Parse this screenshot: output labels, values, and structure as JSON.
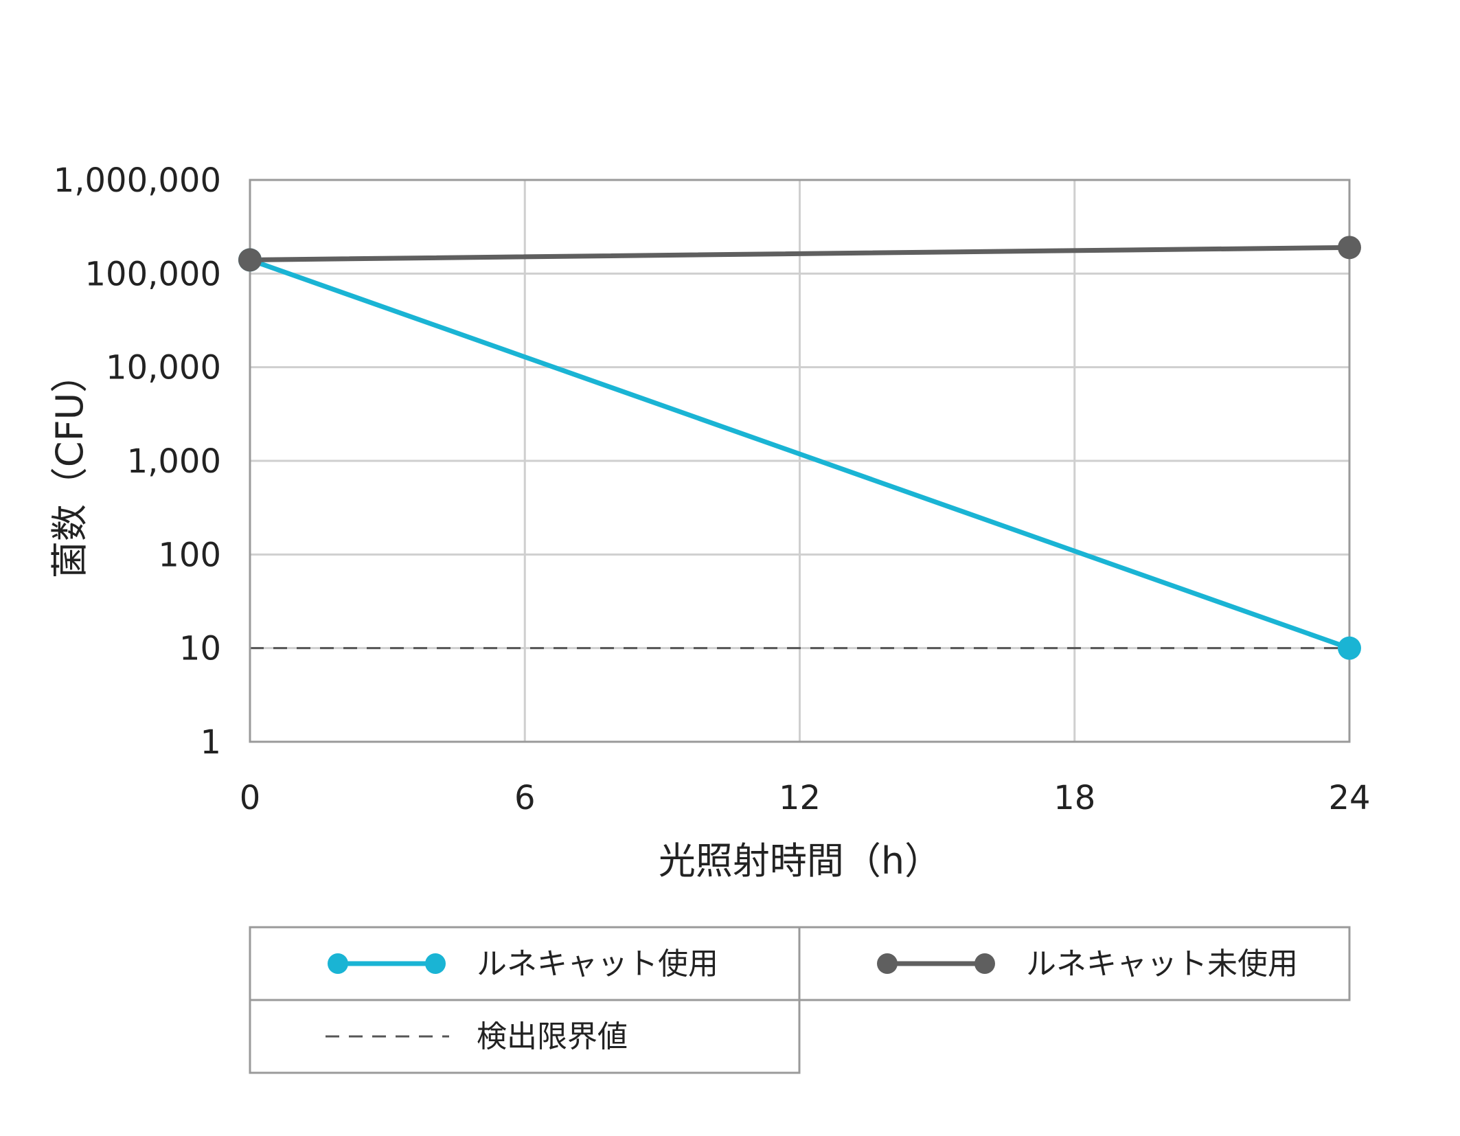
{
  "chart_data": {
    "type": "line",
    "title": "",
    "xlabel": "光照射時間（h）",
    "ylabel": "菌数（CFU）",
    "x_ticks": [
      "0",
      "6",
      "12",
      "18",
      "24"
    ],
    "y_ticks": [
      "1",
      "10",
      "100",
      "1,000",
      "10,000",
      "100,000",
      "1,000,000"
    ],
    "xlim": [
      0,
      24
    ],
    "ylim": [
      1,
      1000000
    ],
    "y_scale": "log",
    "grid": true,
    "legend_position": "bottom",
    "series": [
      {
        "name": "ルネキャット使用",
        "x": [
          0,
          24
        ],
        "y": [
          140000,
          10
        ],
        "color": "#1ab4d4",
        "marker": "circle",
        "line_style": "solid"
      },
      {
        "name": "ルネキャット未使用",
        "x": [
          0,
          24
        ],
        "y": [
          140000,
          190000
        ],
        "color": "#5f5f5f",
        "marker": "circle",
        "line_style": "solid"
      }
    ],
    "reference_lines": [
      {
        "name": "検出限界値",
        "y": 10,
        "color": "#555555",
        "line_style": "dashed"
      }
    ]
  }
}
